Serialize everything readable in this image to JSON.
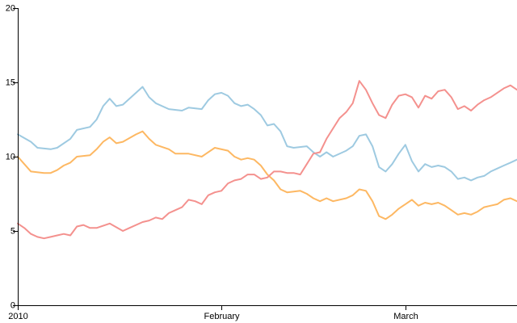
{
  "chart_data": {
    "type": "line",
    "title": "",
    "xlabel": "",
    "ylabel": "",
    "x_range": [
      "2010-01-01",
      "2010-03-18"
    ],
    "ylim": [
      0,
      20
    ],
    "grid": false,
    "y_ticks": [
      {
        "value": 0,
        "label": "0"
      },
      {
        "value": 5,
        "label": "5"
      },
      {
        "value": 10,
        "label": "10"
      },
      {
        "value": 15,
        "label": "15"
      },
      {
        "value": 20,
        "label": "20"
      }
    ],
    "x_ticks": [
      {
        "value": "2010-01-01",
        "label": "2010"
      },
      {
        "value": "2010-02-01",
        "label": "February"
      },
      {
        "value": "2010-03-01",
        "label": "March"
      }
    ],
    "series": [
      {
        "color": "#9ecae1",
        "points": [
          [
            "2010-01-01",
            11.5
          ],
          [
            "2010-01-03",
            11.0
          ],
          [
            "2010-01-04",
            10.6
          ],
          [
            "2010-01-06",
            10.5
          ],
          [
            "2010-01-07",
            10.6
          ],
          [
            "2010-01-09",
            11.2
          ],
          [
            "2010-01-10",
            11.8
          ],
          [
            "2010-01-12",
            12.0
          ],
          [
            "2010-01-13",
            12.5
          ],
          [
            "2010-01-14",
            13.4
          ],
          [
            "2010-01-15",
            13.9
          ],
          [
            "2010-01-16",
            13.4
          ],
          [
            "2010-01-17",
            13.5
          ],
          [
            "2010-01-19",
            14.3
          ],
          [
            "2010-01-20",
            14.7
          ],
          [
            "2010-01-21",
            14.0
          ],
          [
            "2010-01-22",
            13.6
          ],
          [
            "2010-01-24",
            13.2
          ],
          [
            "2010-01-26",
            13.1
          ],
          [
            "2010-01-27",
            13.3
          ],
          [
            "2010-01-29",
            13.2
          ],
          [
            "2010-01-30",
            13.8
          ],
          [
            "2010-01-31",
            14.2
          ],
          [
            "2010-02-01",
            14.3
          ],
          [
            "2010-02-02",
            14.1
          ],
          [
            "2010-02-03",
            13.6
          ],
          [
            "2010-02-04",
            13.4
          ],
          [
            "2010-02-05",
            13.5
          ],
          [
            "2010-02-06",
            13.2
          ],
          [
            "2010-02-07",
            12.8
          ],
          [
            "2010-02-08",
            12.1
          ],
          [
            "2010-02-09",
            12.2
          ],
          [
            "2010-02-10",
            11.7
          ],
          [
            "2010-02-11",
            10.7
          ],
          [
            "2010-02-12",
            10.6
          ],
          [
            "2010-02-14",
            10.7
          ],
          [
            "2010-02-15",
            10.3
          ],
          [
            "2010-02-16",
            10.0
          ],
          [
            "2010-02-17",
            10.3
          ],
          [
            "2010-02-18",
            10.0
          ],
          [
            "2010-02-20",
            10.4
          ],
          [
            "2010-02-21",
            10.7
          ],
          [
            "2010-02-22",
            11.4
          ],
          [
            "2010-02-23",
            11.5
          ],
          [
            "2010-02-24",
            10.7
          ],
          [
            "2010-02-25",
            9.3
          ],
          [
            "2010-02-26",
            9.0
          ],
          [
            "2010-02-27",
            9.5
          ],
          [
            "2010-02-28",
            10.2
          ],
          [
            "2010-03-01",
            10.8
          ],
          [
            "2010-03-02",
            9.7
          ],
          [
            "2010-03-03",
            9.0
          ],
          [
            "2010-03-04",
            9.5
          ],
          [
            "2010-03-05",
            9.3
          ],
          [
            "2010-03-06",
            9.4
          ],
          [
            "2010-03-07",
            9.3
          ],
          [
            "2010-03-08",
            9.0
          ],
          [
            "2010-03-09",
            8.5
          ],
          [
            "2010-03-10",
            8.6
          ],
          [
            "2010-03-11",
            8.4
          ],
          [
            "2010-03-12",
            8.6
          ],
          [
            "2010-03-13",
            8.7
          ],
          [
            "2010-03-14",
            9.0
          ],
          [
            "2010-03-15",
            9.2
          ],
          [
            "2010-03-16",
            9.4
          ],
          [
            "2010-03-17",
            9.6
          ],
          [
            "2010-03-18",
            9.8
          ]
        ]
      },
      {
        "color": "#fdb863",
        "points": [
          [
            "2010-01-01",
            10.0
          ],
          [
            "2010-01-02",
            9.5
          ],
          [
            "2010-01-03",
            9.0
          ],
          [
            "2010-01-05",
            8.9
          ],
          [
            "2010-01-06",
            8.9
          ],
          [
            "2010-01-07",
            9.1
          ],
          [
            "2010-01-08",
            9.4
          ],
          [
            "2010-01-09",
            9.6
          ],
          [
            "2010-01-10",
            10.0
          ],
          [
            "2010-01-12",
            10.1
          ],
          [
            "2010-01-13",
            10.5
          ],
          [
            "2010-01-14",
            11.0
          ],
          [
            "2010-01-15",
            11.3
          ],
          [
            "2010-01-16",
            10.9
          ],
          [
            "2010-01-17",
            11.0
          ],
          [
            "2010-01-19",
            11.5
          ],
          [
            "2010-01-20",
            11.7
          ],
          [
            "2010-01-21",
            11.2
          ],
          [
            "2010-01-22",
            10.8
          ],
          [
            "2010-01-24",
            10.5
          ],
          [
            "2010-01-25",
            10.2
          ],
          [
            "2010-01-27",
            10.2
          ],
          [
            "2010-01-29",
            10.0
          ],
          [
            "2010-01-31",
            10.6
          ],
          [
            "2010-02-02",
            10.4
          ],
          [
            "2010-02-03",
            10.0
          ],
          [
            "2010-02-04",
            9.8
          ],
          [
            "2010-02-05",
            9.9
          ],
          [
            "2010-02-06",
            9.8
          ],
          [
            "2010-02-07",
            9.4
          ],
          [
            "2010-02-08",
            8.8
          ],
          [
            "2010-02-09",
            8.4
          ],
          [
            "2010-02-10",
            7.8
          ],
          [
            "2010-02-11",
            7.6
          ],
          [
            "2010-02-13",
            7.7
          ],
          [
            "2010-02-14",
            7.5
          ],
          [
            "2010-02-15",
            7.2
          ],
          [
            "2010-02-16",
            7.0
          ],
          [
            "2010-02-17",
            7.2
          ],
          [
            "2010-02-18",
            7.0
          ],
          [
            "2010-02-20",
            7.2
          ],
          [
            "2010-02-21",
            7.4
          ],
          [
            "2010-02-22",
            7.8
          ],
          [
            "2010-02-23",
            7.7
          ],
          [
            "2010-02-24",
            7.0
          ],
          [
            "2010-02-25",
            6.0
          ],
          [
            "2010-02-26",
            5.8
          ],
          [
            "2010-02-27",
            6.1
          ],
          [
            "2010-02-28",
            6.5
          ],
          [
            "2010-03-01",
            6.8
          ],
          [
            "2010-03-02",
            7.1
          ],
          [
            "2010-03-03",
            6.7
          ],
          [
            "2010-03-04",
            6.9
          ],
          [
            "2010-03-05",
            6.8
          ],
          [
            "2010-03-06",
            6.9
          ],
          [
            "2010-03-07",
            6.7
          ],
          [
            "2010-03-08",
            6.4
          ],
          [
            "2010-03-09",
            6.1
          ],
          [
            "2010-03-10",
            6.2
          ],
          [
            "2010-03-11",
            6.1
          ],
          [
            "2010-03-12",
            6.3
          ],
          [
            "2010-03-13",
            6.6
          ],
          [
            "2010-03-14",
            6.7
          ],
          [
            "2010-03-15",
            6.8
          ],
          [
            "2010-03-16",
            7.1
          ],
          [
            "2010-03-17",
            7.2
          ],
          [
            "2010-03-18",
            7.0
          ]
        ]
      },
      {
        "color": "#f4918e",
        "points": [
          [
            "2010-01-01",
            5.5
          ],
          [
            "2010-01-02",
            5.2
          ],
          [
            "2010-01-03",
            4.8
          ],
          [
            "2010-01-04",
            4.6
          ],
          [
            "2010-01-05",
            4.5
          ],
          [
            "2010-01-06",
            4.6
          ],
          [
            "2010-01-07",
            4.7
          ],
          [
            "2010-01-08",
            4.8
          ],
          [
            "2010-01-09",
            4.7
          ],
          [
            "2010-01-10",
            5.3
          ],
          [
            "2010-01-11",
            5.4
          ],
          [
            "2010-01-12",
            5.2
          ],
          [
            "2010-01-13",
            5.2
          ],
          [
            "2010-01-15",
            5.5
          ],
          [
            "2010-01-17",
            5.0
          ],
          [
            "2010-01-18",
            5.2
          ],
          [
            "2010-01-20",
            5.6
          ],
          [
            "2010-01-21",
            5.7
          ],
          [
            "2010-01-22",
            5.9
          ],
          [
            "2010-01-23",
            5.8
          ],
          [
            "2010-01-24",
            6.2
          ],
          [
            "2010-01-25",
            6.4
          ],
          [
            "2010-01-26",
            6.6
          ],
          [
            "2010-01-27",
            7.1
          ],
          [
            "2010-01-28",
            7.0
          ],
          [
            "2010-01-29",
            6.8
          ],
          [
            "2010-01-30",
            7.4
          ],
          [
            "2010-01-31",
            7.6
          ],
          [
            "2010-02-01",
            7.7
          ],
          [
            "2010-02-02",
            8.2
          ],
          [
            "2010-02-03",
            8.4
          ],
          [
            "2010-02-04",
            8.5
          ],
          [
            "2010-02-05",
            8.8
          ],
          [
            "2010-02-06",
            8.8
          ],
          [
            "2010-02-07",
            8.5
          ],
          [
            "2010-02-08",
            8.6
          ],
          [
            "2010-02-09",
            9.0
          ],
          [
            "2010-02-10",
            9.0
          ],
          [
            "2010-02-11",
            8.9
          ],
          [
            "2010-02-12",
            8.9
          ],
          [
            "2010-02-13",
            8.8
          ],
          [
            "2010-02-14",
            9.5
          ],
          [
            "2010-02-15",
            10.2
          ],
          [
            "2010-02-16",
            10.3
          ],
          [
            "2010-02-17",
            11.2
          ],
          [
            "2010-02-18",
            11.9
          ],
          [
            "2010-02-19",
            12.6
          ],
          [
            "2010-02-20",
            13.0
          ],
          [
            "2010-02-21",
            13.6
          ],
          [
            "2010-02-22",
            15.1
          ],
          [
            "2010-02-23",
            14.5
          ],
          [
            "2010-02-24",
            13.6
          ],
          [
            "2010-02-25",
            12.8
          ],
          [
            "2010-02-26",
            12.6
          ],
          [
            "2010-02-27",
            13.5
          ],
          [
            "2010-02-28",
            14.1
          ],
          [
            "2010-03-01",
            14.2
          ],
          [
            "2010-03-02",
            14.0
          ],
          [
            "2010-03-03",
            13.3
          ],
          [
            "2010-03-04",
            14.1
          ],
          [
            "2010-03-05",
            13.9
          ],
          [
            "2010-03-06",
            14.4
          ],
          [
            "2010-03-07",
            14.5
          ],
          [
            "2010-03-08",
            14.0
          ],
          [
            "2010-03-09",
            13.2
          ],
          [
            "2010-03-10",
            13.4
          ],
          [
            "2010-03-11",
            13.1
          ],
          [
            "2010-03-12",
            13.5
          ],
          [
            "2010-03-13",
            13.8
          ],
          [
            "2010-03-14",
            14.0
          ],
          [
            "2010-03-15",
            14.3
          ],
          [
            "2010-03-16",
            14.6
          ],
          [
            "2010-03-17",
            14.8
          ],
          [
            "2010-03-18",
            14.5
          ]
        ]
      }
    ]
  }
}
